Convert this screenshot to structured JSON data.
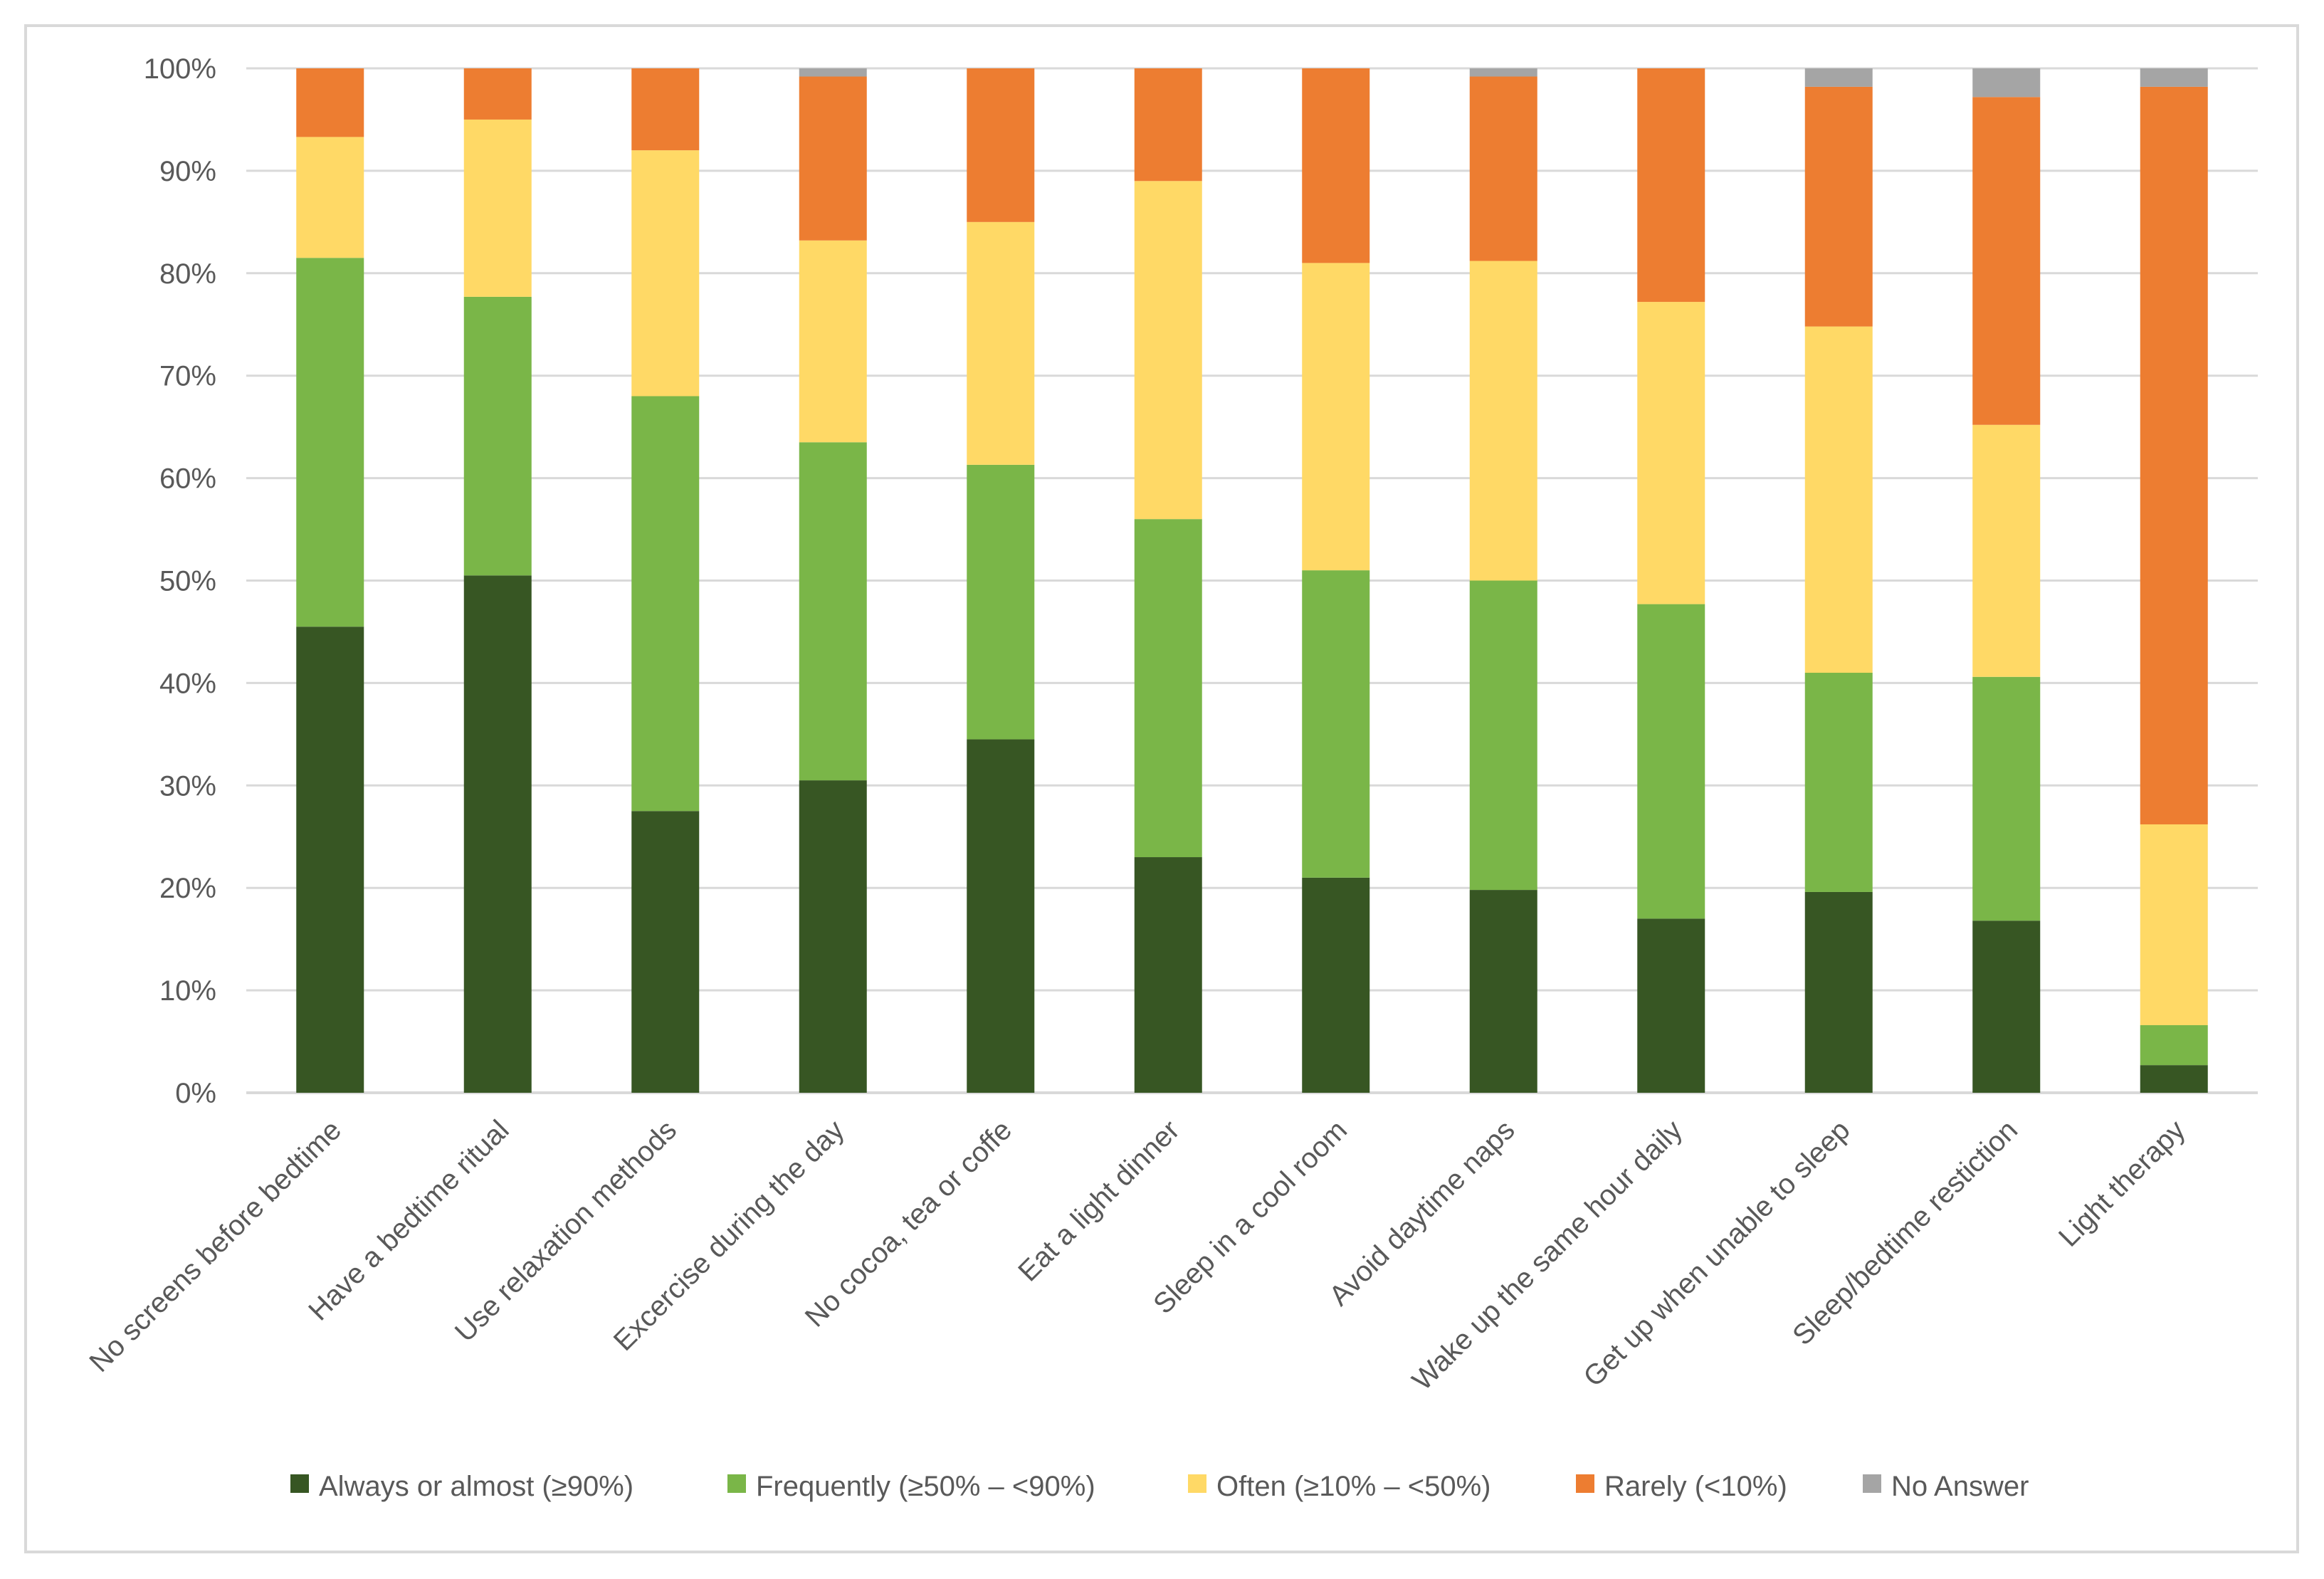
{
  "chart_data": {
    "type": "bar",
    "stacked": true,
    "title": "",
    "xlabel": "",
    "ylabel": "",
    "ylim": [
      0,
      100
    ],
    "yticks": [
      "0%",
      "10%",
      "20%",
      "30%",
      "40%",
      "50%",
      "60%",
      "70%",
      "80%",
      "90%",
      "100%"
    ],
    "grid": true,
    "legend_position": "bottom",
    "categories": [
      "No screens before bedtime",
      "Have a bedtime ritual",
      "Use relaxation methods",
      "Excercise during the day",
      "No cocoa, tea or coffe",
      "Eat a light dinner",
      "Sleep in a cool room",
      "Avoid daytime naps",
      "Wake up the same hour daily",
      "Get up when unable to sleep",
      "Sleep/bedtime restiction",
      "Light therapy"
    ],
    "series": [
      {
        "name": "Always or almost (≥90%)",
        "color": "#375623",
        "values": [
          45.5,
          50.5,
          27.5,
          30.5,
          34.5,
          23.0,
          21.0,
          19.8,
          17.0,
          19.6,
          16.8,
          2.7
        ]
      },
      {
        "name": "Frequently (≥50% – <90%)",
        "color": "#7ab648",
        "values": [
          36.0,
          27.2,
          40.5,
          33.0,
          26.8,
          33.0,
          30.0,
          30.2,
          30.7,
          21.4,
          23.8,
          3.9
        ]
      },
      {
        "name": "Often (≥10% – <50%)",
        "color": "#ffd966",
        "values": [
          11.8,
          17.3,
          24.0,
          19.7,
          23.7,
          33.0,
          30.0,
          31.2,
          29.5,
          33.8,
          24.6,
          19.6
        ]
      },
      {
        "name": "Rarely (<10%)",
        "color": "#ed7d31",
        "values": [
          6.7,
          5.0,
          8.0,
          16.0,
          15.0,
          11.0,
          19.0,
          18.0,
          22.8,
          23.4,
          32.0,
          72.0
        ]
      },
      {
        "name": "No Answer",
        "color": "#a5a5a5",
        "values": [
          0.0,
          0.0,
          0.0,
          0.8,
          0.0,
          0.0,
          0.0,
          0.8,
          0.0,
          1.8,
          2.8,
          1.8
        ]
      }
    ]
  }
}
